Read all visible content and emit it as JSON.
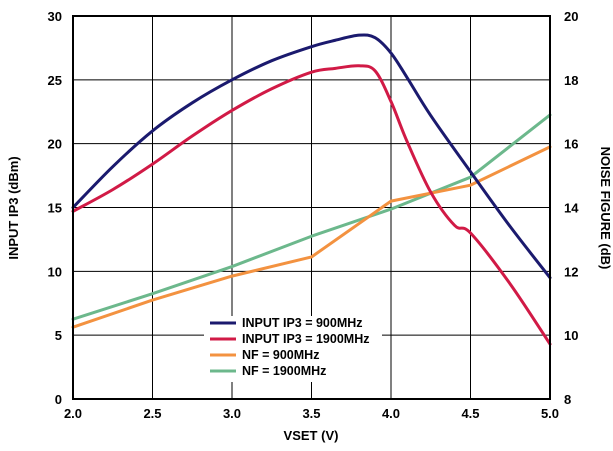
{
  "chart_data": {
    "type": "line",
    "xlabel": "VSET (V)",
    "ylabel_left": "INPUT IP3 (dBm)",
    "ylabel_right": "NOISE FIGURE (dB)",
    "xlim": [
      2.0,
      5.0
    ],
    "ylim_left": [
      0,
      30
    ],
    "ylim_right": [
      8,
      20
    ],
    "x_ticks": [
      "2.0",
      "2.5",
      "3.0",
      "3.5",
      "4.0",
      "4.5",
      "5.0"
    ],
    "y_left_ticks": [
      "0",
      "5",
      "10",
      "15",
      "20",
      "25",
      "30"
    ],
    "y_right_ticks": [
      "8",
      "10",
      "12",
      "14",
      "16",
      "18",
      "20"
    ],
    "grid": true,
    "legend_position": "bottom-center",
    "series": [
      {
        "name": "INPUT IP3 = 900MHz",
        "axis": "left",
        "color": "#1b1a6e",
        "x": [
          2.0,
          2.25,
          2.5,
          2.75,
          3.0,
          3.25,
          3.5,
          3.65,
          3.8,
          3.9,
          4.0,
          4.1,
          4.25,
          4.5,
          4.75,
          5.0
        ],
        "y": [
          15.0,
          18.2,
          21.0,
          23.2,
          25.0,
          26.5,
          27.6,
          28.1,
          28.5,
          28.3,
          27.1,
          25.2,
          22.2,
          17.8,
          13.5,
          9.5
        ]
      },
      {
        "name": "INPUT IP3 = 1900MHz",
        "axis": "left",
        "color": "#d11a46",
        "x": [
          2.0,
          2.25,
          2.5,
          2.75,
          3.0,
          3.25,
          3.5,
          3.65,
          3.8,
          3.9,
          4.0,
          4.1,
          4.25,
          4.4,
          4.5,
          4.75,
          5.0
        ],
        "y": [
          14.7,
          16.4,
          18.4,
          20.6,
          22.6,
          24.3,
          25.6,
          25.9,
          26.1,
          25.7,
          23.3,
          20.2,
          16.2,
          13.6,
          13.0,
          9.0,
          4.3
        ]
      },
      {
        "name": "NF = 900MHz",
        "axis": "right",
        "color": "#f39240",
        "x": [
          2.0,
          2.5,
          3.0,
          3.5,
          4.0,
          4.5,
          5.0
        ],
        "y": [
          10.25,
          11.1,
          11.85,
          12.45,
          14.2,
          14.7,
          15.9
        ]
      },
      {
        "name": "NF = 1900MHz",
        "axis": "right",
        "color": "#6cb88c",
        "x": [
          2.0,
          2.5,
          3.0,
          3.5,
          4.0,
          4.5,
          5.0
        ],
        "y": [
          10.5,
          11.3,
          12.15,
          13.1,
          13.95,
          14.95,
          16.9
        ]
      }
    ]
  }
}
